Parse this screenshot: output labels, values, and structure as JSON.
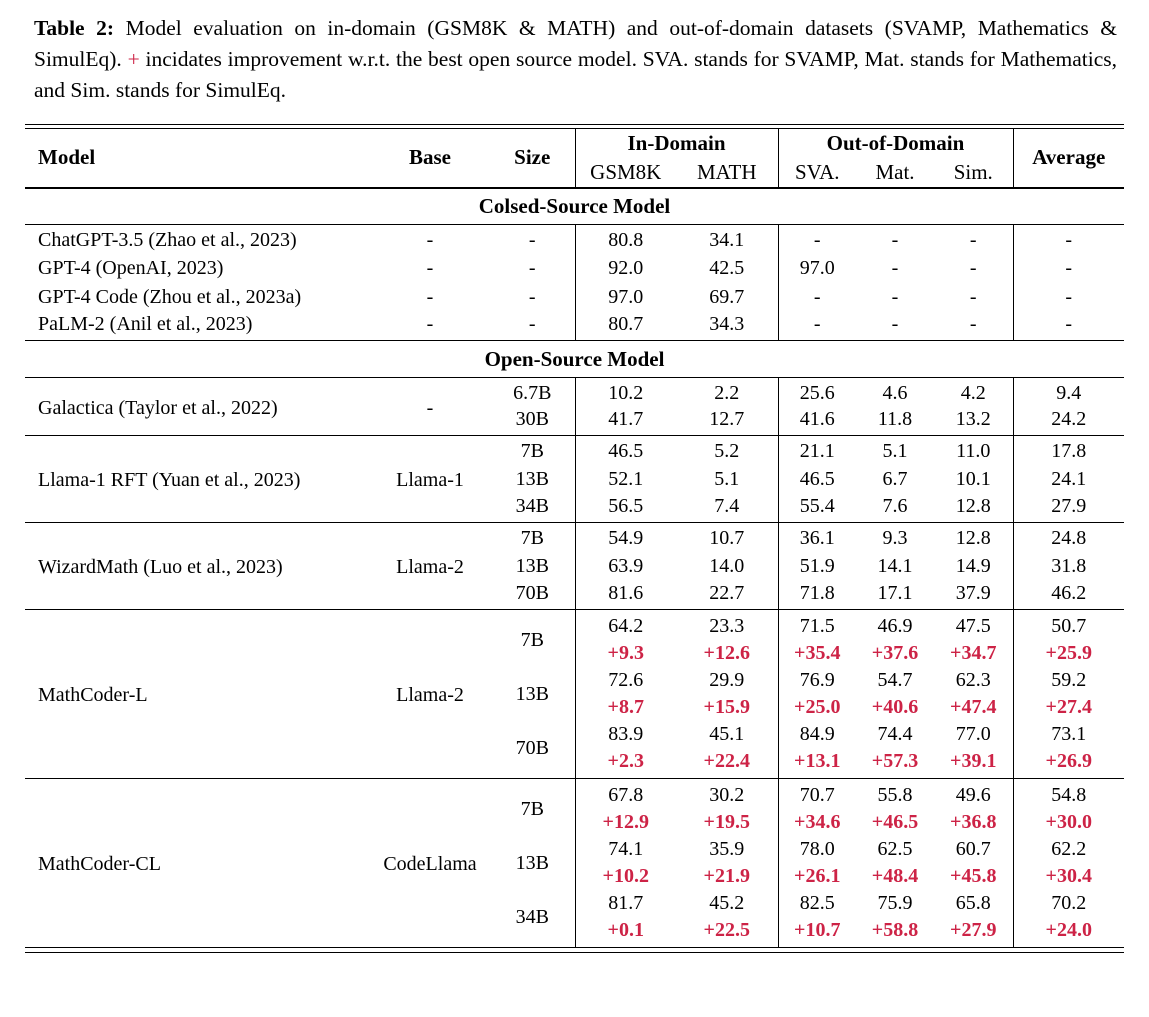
{
  "colors": {
    "accent_red": "#cd2346",
    "text": "#000000",
    "background": "#ffffff"
  },
  "caption": {
    "label": "Table 2:",
    "text_before_plus": "Model evaluation on in-domain (GSM8K & MATH) and out-of-domain datasets (SVAMP, Mathematics & SimulEq).",
    "plus_sign": "+",
    "text_after_plus": "incidates improvement w.r.t. the best open source model. SVA. stands for SVAMP, Mat. stands for Mathematics, and Sim. stands for SimulEq."
  },
  "table": {
    "header": {
      "model": "Model",
      "base": "Base",
      "size": "Size",
      "in_domain": "In-Domain",
      "out_of_domain": "Out-of-Domain",
      "average": "Average",
      "sub": [
        "GSM8K",
        "MATH",
        "SVA.",
        "Mat.",
        "Sim."
      ]
    },
    "sections": [
      {
        "title": "Colsed-Source Model",
        "ruled_groups": false,
        "groups": [
          {
            "model": "ChatGPT-3.5 (Zhao et al., 2023)",
            "base": "-",
            "rows": [
              {
                "size": "-",
                "values": [
                  "80.8",
                  "34.1",
                  "-",
                  "-",
                  "-",
                  "-"
                ]
              }
            ]
          },
          {
            "model": "GPT-4 (OpenAI, 2023)",
            "base": "-",
            "rows": [
              {
                "size": "-",
                "values": [
                  "92.0",
                  "42.5",
                  "97.0",
                  "-",
                  "-",
                  "-"
                ]
              }
            ]
          },
          {
            "model": "GPT-4 Code (Zhou et al., 2023a)",
            "base": "-",
            "rows": [
              {
                "size": "-",
                "values": [
                  "97.0",
                  "69.7",
                  "-",
                  "-",
                  "-",
                  "-"
                ]
              }
            ]
          },
          {
            "model": "PaLM-2 (Anil et al., 2023)",
            "base": "-",
            "rows": [
              {
                "size": "-",
                "values": [
                  "80.7",
                  "34.3",
                  "-",
                  "-",
                  "-",
                  "-"
                ]
              }
            ]
          }
        ]
      },
      {
        "title": "Open-Source Model",
        "ruled_groups": true,
        "groups": [
          {
            "model": "Galactica (Taylor et al., 2022)",
            "base": "-",
            "rows": [
              {
                "size": "6.7B",
                "values": [
                  "10.2",
                  "2.2",
                  "25.6",
                  "4.6",
                  "4.2",
                  "9.4"
                ]
              },
              {
                "size": "30B",
                "values": [
                  "41.7",
                  "12.7",
                  "41.6",
                  "11.8",
                  "13.2",
                  "24.2"
                ]
              }
            ]
          },
          {
            "model": "Llama-1 RFT (Yuan et al., 2023)",
            "base": "Llama-1",
            "rows": [
              {
                "size": "7B",
                "values": [
                  "46.5",
                  "5.2",
                  "21.1",
                  "5.1",
                  "11.0",
                  "17.8"
                ]
              },
              {
                "size": "13B",
                "values": [
                  "52.1",
                  "5.1",
                  "46.5",
                  "6.7",
                  "10.1",
                  "24.1"
                ]
              },
              {
                "size": "34B",
                "values": [
                  "56.5",
                  "7.4",
                  "55.4",
                  "7.6",
                  "12.8",
                  "27.9"
                ]
              }
            ]
          },
          {
            "model": "WizardMath (Luo et al., 2023)",
            "base": "Llama-2",
            "rows": [
              {
                "size": "7B",
                "values": [
                  "54.9",
                  "10.7",
                  "36.1",
                  "9.3",
                  "12.8",
                  "24.8"
                ]
              },
              {
                "size": "13B",
                "values": [
                  "63.9",
                  "14.0",
                  "51.9",
                  "14.1",
                  "14.9",
                  "31.8"
                ]
              },
              {
                "size": "70B",
                "values": [
                  "81.6",
                  "22.7",
                  "71.8",
                  "17.1",
                  "37.9",
                  "46.2"
                ]
              }
            ]
          },
          {
            "model": "MathCoder-L",
            "base": "Llama-2",
            "rows": [
              {
                "size": "7B",
                "values": [
                  "64.2",
                  "23.3",
                  "71.5",
                  "46.9",
                  "47.5",
                  "50.7"
                ],
                "deltas": [
                  "+9.3",
                  "+12.6",
                  "+35.4",
                  "+37.6",
                  "+34.7",
                  "+25.9"
                ]
              },
              {
                "size": "13B",
                "values": [
                  "72.6",
                  "29.9",
                  "76.9",
                  "54.7",
                  "62.3",
                  "59.2"
                ],
                "deltas": [
                  "+8.7",
                  "+15.9",
                  "+25.0",
                  "+40.6",
                  "+47.4",
                  "+27.4"
                ]
              },
              {
                "size": "70B",
                "values": [
                  "83.9",
                  "45.1",
                  "84.9",
                  "74.4",
                  "77.0",
                  "73.1"
                ],
                "deltas": [
                  "+2.3",
                  "+22.4",
                  "+13.1",
                  "+57.3",
                  "+39.1",
                  "+26.9"
                ]
              }
            ]
          },
          {
            "model": "MathCoder-CL",
            "base": "CodeLlama",
            "rows": [
              {
                "size": "7B",
                "values": [
                  "67.8",
                  "30.2",
                  "70.7",
                  "55.8",
                  "49.6",
                  "54.8"
                ],
                "deltas": [
                  "+12.9",
                  "+19.5",
                  "+34.6",
                  "+46.5",
                  "+36.8",
                  "+30.0"
                ]
              },
              {
                "size": "13B",
                "values": [
                  "74.1",
                  "35.9",
                  "78.0",
                  "62.5",
                  "60.7",
                  "62.2"
                ],
                "deltas": [
                  "+10.2",
                  "+21.9",
                  "+26.1",
                  "+48.4",
                  "+45.8",
                  "+30.4"
                ]
              },
              {
                "size": "34B",
                "values": [
                  "81.7",
                  "45.2",
                  "82.5",
                  "75.9",
                  "65.8",
                  "70.2"
                ],
                "deltas": [
                  "+0.1",
                  "+22.5",
                  "+10.7",
                  "+58.8",
                  "+27.9",
                  "+24.0"
                ]
              }
            ]
          }
        ]
      }
    ]
  }
}
